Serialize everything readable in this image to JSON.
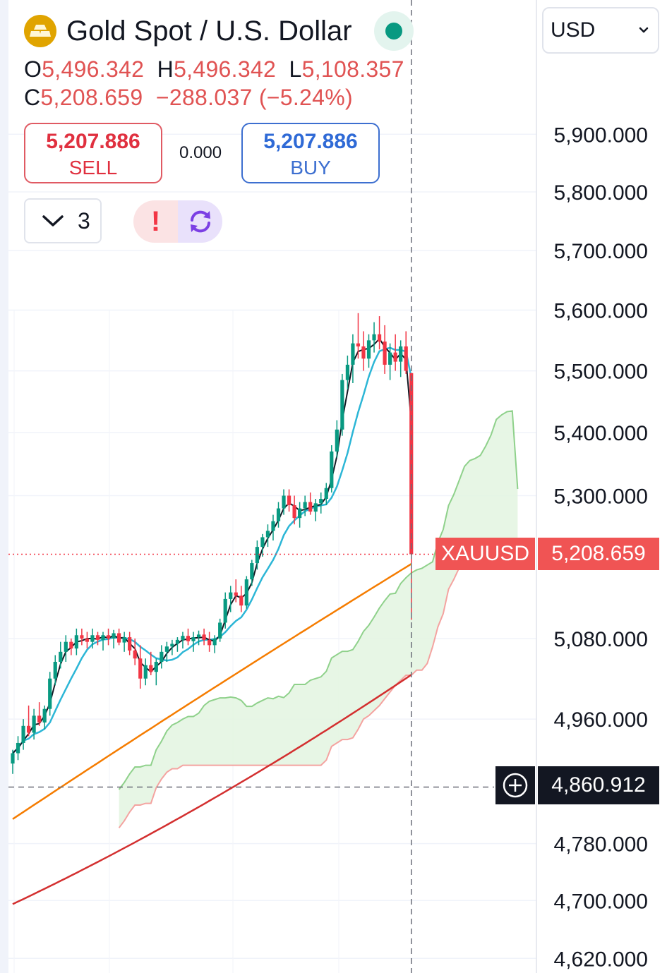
{
  "header": {
    "title": "Gold Spot / U.S. Dollar",
    "logo_icon": "gold-bars-icon",
    "status_icon": "market-open-dot-icon"
  },
  "ohlc": {
    "o_label": "O",
    "o": "5,496.342",
    "h_label": "H",
    "h": "5,496.342",
    "l_label": "L",
    "l": "5,108.357",
    "c_label": "C",
    "c": "5,208.659",
    "change": "−288.037 (−5.24%)"
  },
  "trade": {
    "sell_price": "5,207.886",
    "sell_label": "SELL",
    "spread": "0.000",
    "buy_price": "5,207.886",
    "buy_label": "BUY"
  },
  "indicators": {
    "collapse_icon": "chevron-down-icon",
    "count": "3"
  },
  "alerts": {
    "alert_icon": "exclamation-icon",
    "refresh_icon": "refresh-icon"
  },
  "currency_selector": {
    "value": "USD",
    "icon": "chevron-down-icon"
  },
  "markers": {
    "symbol": "XAUUSD",
    "last_price": "5,208.659",
    "crosshair_price": "4,860.912",
    "crosshair_icon": "plus-circle-icon"
  },
  "colors": {
    "up": "#089981",
    "down": "#f23645",
    "ma_fast": "#131722",
    "ma_mid": "#2cb6d6",
    "ma_slow": "#f57c00",
    "ma_long": "#d32f2f",
    "cloud_fill": "#e3f5e0",
    "span_a": "#8fd18b",
    "span_b": "#f4a3a0",
    "sell": "#e0303f",
    "buy": "#2962ff"
  },
  "chart_data": {
    "type": "candlestick",
    "y_axis_labels": [
      "5,900.000",
      "5,800.000",
      "5,700.000",
      "5,600.000",
      "5,500.000",
      "5,400.000",
      "5,300.000",
      "5,080.000",
      "4,960.000",
      "4,780.000",
      "4,700.000",
      "4,620.000"
    ],
    "ylim": [
      4600,
      5950
    ],
    "y_scale": "log",
    "grid": true,
    "last_price": 5208.659,
    "crosshair_price": 4860.912,
    "candles": [
      [
        4895,
        4915,
        4880,
        4910
      ],
      [
        4910,
        4935,
        4900,
        4925
      ],
      [
        4925,
        4960,
        4915,
        4950
      ],
      [
        4950,
        4980,
        4935,
        4940
      ],
      [
        4940,
        4975,
        4930,
        4965
      ],
      [
        4965,
        4985,
        4950,
        4955
      ],
      [
        4955,
        4980,
        4945,
        4975
      ],
      [
        4975,
        5030,
        4965,
        5020
      ],
      [
        5020,
        5055,
        5010,
        5045
      ],
      [
        5045,
        5075,
        5035,
        5060
      ],
      [
        5060,
        5085,
        5045,
        5075
      ],
      [
        5075,
        5080,
        5055,
        5065
      ],
      [
        5065,
        5095,
        5055,
        5085
      ],
      [
        5085,
        5095,
        5070,
        5080
      ],
      [
        5080,
        5090,
        5065,
        5075
      ],
      [
        5075,
        5095,
        5065,
        5085
      ],
      [
        5085,
        5090,
        5070,
        5078
      ],
      [
        5078,
        5090,
        5062,
        5085
      ],
      [
        5085,
        5095,
        5070,
        5080
      ],
      [
        5080,
        5093,
        5065,
        5088
      ],
      [
        5088,
        5095,
        5070,
        5074
      ],
      [
        5074,
        5090,
        5060,
        5082
      ],
      [
        5082,
        5090,
        5055,
        5062
      ],
      [
        5062,
        5080,
        5040,
        5050
      ],
      [
        5050,
        5070,
        5005,
        5020
      ],
      [
        5020,
        5050,
        5010,
        5040
      ],
      [
        5040,
        5060,
        5025,
        5030
      ],
      [
        5030,
        5050,
        5010,
        5045
      ],
      [
        5045,
        5070,
        5035,
        5060
      ],
      [
        5060,
        5075,
        5045,
        5068
      ],
      [
        5068,
        5078,
        5055,
        5072
      ],
      [
        5072,
        5082,
        5060,
        5078
      ],
      [
        5078,
        5090,
        5065,
        5084
      ],
      [
        5084,
        5095,
        5070,
        5076
      ],
      [
        5076,
        5090,
        5060,
        5082
      ],
      [
        5082,
        5092,
        5070,
        5086
      ],
      [
        5086,
        5095,
        5070,
        5078
      ],
      [
        5078,
        5090,
        5060,
        5070
      ],
      [
        5070,
        5085,
        5058,
        5080
      ],
      [
        5080,
        5110,
        5075,
        5104
      ],
      [
        5104,
        5150,
        5095,
        5140
      ],
      [
        5140,
        5160,
        5120,
        5150
      ],
      [
        5150,
        5170,
        5135,
        5145
      ],
      [
        5145,
        5160,
        5120,
        5130
      ],
      [
        5130,
        5175,
        5125,
        5170
      ],
      [
        5170,
        5200,
        5160,
        5195
      ],
      [
        5195,
        5230,
        5185,
        5220
      ],
      [
        5220,
        5240,
        5205,
        5235
      ],
      [
        5235,
        5255,
        5220,
        5245
      ],
      [
        5245,
        5270,
        5230,
        5260
      ],
      [
        5260,
        5290,
        5250,
        5280
      ],
      [
        5280,
        5310,
        5270,
        5300
      ],
      [
        5300,
        5310,
        5275,
        5285
      ],
      [
        5285,
        5300,
        5255,
        5265
      ],
      [
        5265,
        5290,
        5250,
        5280
      ],
      [
        5280,
        5300,
        5268,
        5290
      ],
      [
        5290,
        5305,
        5270,
        5275
      ],
      [
        5275,
        5295,
        5260,
        5288
      ],
      [
        5288,
        5305,
        5272,
        5295
      ],
      [
        5295,
        5320,
        5285,
        5312
      ],
      [
        5312,
        5380,
        5305,
        5370
      ],
      [
        5370,
        5420,
        5360,
        5405
      ],
      [
        5405,
        5495,
        5395,
        5485
      ],
      [
        5485,
        5525,
        5470,
        5510
      ],
      [
        5510,
        5560,
        5480,
        5545
      ],
      [
        5545,
        5595,
        5520,
        5540
      ],
      [
        5540,
        5565,
        5500,
        5520
      ],
      [
        5520,
        5560,
        5505,
        5550
      ],
      [
        5550,
        5580,
        5530,
        5560
      ],
      [
        5560,
        5590,
        5535,
        5548
      ],
      [
        5548,
        5575,
        5495,
        5510
      ],
      [
        5510,
        5545,
        5485,
        5530
      ],
      [
        5530,
        5560,
        5500,
        5515
      ],
      [
        5515,
        5550,
        5490,
        5540
      ],
      [
        5540,
        5565,
        5495,
        5500
      ],
      [
        5496.342,
        5496.342,
        5108.357,
        5208.659
      ]
    ]
  }
}
